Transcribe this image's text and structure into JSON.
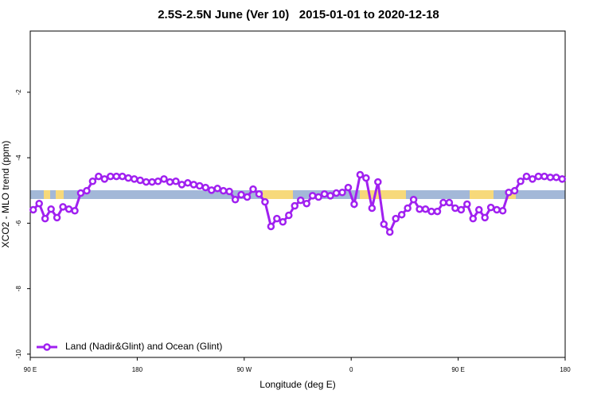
{
  "chart_data": {
    "type": "line",
    "title": "2.5S-2.5N June (Ver 10)   2015-01-01 to 2020-12-18",
    "xlabel": "Longitude (deg E)",
    "ylabel": "XCO2 - MLO trend (ppm)",
    "xlim": [
      90,
      540
    ],
    "ylim": [
      -10.1,
      -0.13
    ],
    "xticks": [
      {
        "value": 90,
        "label": "90 E"
      },
      {
        "value": 180,
        "label": "180"
      },
      {
        "value": 270,
        "label": "90 W"
      },
      {
        "value": 360,
        "label": "0"
      },
      {
        "value": 450,
        "label": "90 E"
      },
      {
        "value": 540,
        "label": "180"
      }
    ],
    "yticks": [
      -2,
      -4,
      -6,
      -8,
      -10
    ],
    "legend": "lower left",
    "x": [
      92.5,
      97.5,
      102.5,
      107.5,
      112.5,
      117.5,
      122.5,
      127.5,
      132.5,
      137.5,
      142.5,
      147.5,
      152.5,
      157.5,
      162.5,
      167.5,
      172.5,
      177.5,
      182.5,
      187.5,
      192.5,
      197.5,
      202.5,
      207.5,
      212.5,
      217.5,
      222.5,
      227.5,
      232.5,
      237.5,
      242.5,
      247.5,
      252.5,
      257.5,
      262.5,
      267.5,
      272.5,
      277.5,
      282.5,
      287.5,
      292.5,
      297.5,
      302.5,
      307.5,
      312.5,
      317.5,
      322.5,
      327.5,
      332.5,
      337.5,
      342.5,
      347.5,
      352.5,
      357.5,
      362.5,
      367.5,
      372.5,
      377.5,
      382.5,
      387.5,
      392.5,
      397.5,
      402.5,
      407.5,
      412.5,
      417.5,
      422.5,
      427.5,
      432.5,
      437.5,
      442.5,
      447.5,
      452.5,
      457.5,
      462.5,
      467.5,
      472.5,
      477.5,
      482.5,
      487.5,
      492.5,
      497.5,
      502.5,
      507.5,
      512.5,
      517.5,
      522.5,
      527.5,
      532.5,
      537.5
    ],
    "series": [
      {
        "name": "Land (Nadir&Glint) and Ocean (Glint)",
        "color": "#a020f0",
        "values": [
          -5.59,
          -5.4,
          -5.86,
          -5.57,
          -5.83,
          -5.5,
          -5.57,
          -5.62,
          -5.08,
          -5.01,
          -4.72,
          -4.57,
          -4.65,
          -4.57,
          -4.57,
          -4.57,
          -4.62,
          -4.65,
          -4.69,
          -4.74,
          -4.74,
          -4.72,
          -4.65,
          -4.74,
          -4.72,
          -4.82,
          -4.77,
          -4.82,
          -4.86,
          -4.91,
          -4.99,
          -4.94,
          -5.01,
          -5.03,
          -5.28,
          -5.13,
          -5.2,
          -4.96,
          -5.11,
          -5.35,
          -6.1,
          -5.86,
          -5.96,
          -5.76,
          -5.47,
          -5.3,
          -5.4,
          -5.16,
          -5.2,
          -5.11,
          -5.16,
          -5.08,
          -5.06,
          -4.91,
          -5.42,
          -4.52,
          -4.62,
          -5.54,
          -4.74,
          -6.03,
          -6.27,
          -5.86,
          -5.74,
          -5.54,
          -5.28,
          -5.57,
          -5.57,
          -5.64,
          -5.64,
          -5.37,
          -5.37,
          -5.54,
          -5.59,
          -5.42,
          -5.86,
          -5.59,
          -5.83,
          -5.52,
          -5.59,
          -5.62,
          -5.06,
          -5.01,
          -4.72,
          -4.57,
          -4.65,
          -4.57,
          -4.57,
          -4.6,
          -4.6,
          -4.65
        ]
      }
    ]
  }
}
